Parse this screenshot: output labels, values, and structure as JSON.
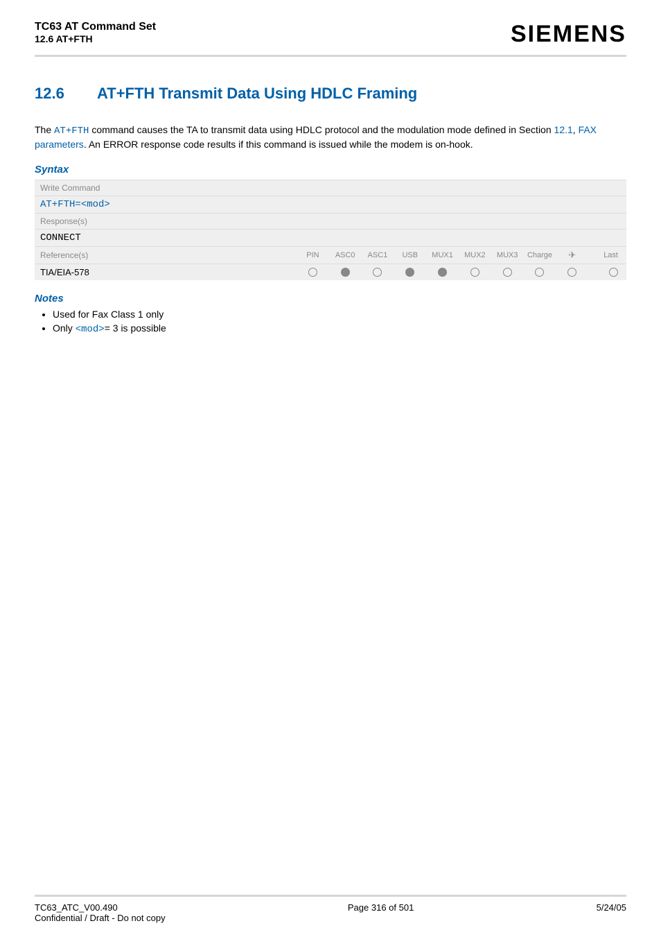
{
  "header": {
    "doc_title": "TC63 AT Command Set",
    "section_ref": "12.6 AT+FTH",
    "logo_text": "SIEMENS"
  },
  "section": {
    "number": "12.6",
    "title": "AT+FTH   Transmit Data Using HDLC Framing",
    "title_color": "#0060a8"
  },
  "intro": {
    "pre": "The ",
    "cmd": "AT+FTH",
    "mid": " command causes the TA to transmit data using HDLC protocol and the modulation mode defined in Section ",
    "link1": "12.1",
    "sep": ", ",
    "link2": "FAX parameters",
    "post": ". An ERROR response code results if this command is issued while the modem is on-hook."
  },
  "syntax": {
    "heading": "Syntax",
    "write_label": "Write Command",
    "write_cmd_pre": "AT+FTH=",
    "write_cmd_param": "<mod>",
    "response_label": "Response(s)",
    "response_val": "CONNECT",
    "ref_label": "Reference(s)",
    "ref_val": "TIA/EIA-578",
    "cols": [
      "PIN",
      "ASC0",
      "ASC1",
      "USB",
      "MUX1",
      "MUX2",
      "MUX3",
      "Charge",
      "✈",
      "Last"
    ],
    "dots": [
      "empty",
      "filled",
      "empty",
      "filled",
      "filled",
      "empty",
      "empty",
      "empty",
      "empty",
      "empty"
    ],
    "bg_color": "#efefef",
    "label_color": "#888888"
  },
  "notes": {
    "heading": "Notes",
    "items": [
      {
        "pre": "Used for Fax Class 1 only",
        "link": "",
        "post": ""
      },
      {
        "pre": "Only ",
        "link": "<mod>",
        "post": "= 3 is possible"
      }
    ]
  },
  "footer": {
    "version": "TC63_ATC_V00.490",
    "confidential": "Confidential / Draft - Do not copy",
    "page": "Page 316 of 501",
    "date": "5/24/05"
  }
}
